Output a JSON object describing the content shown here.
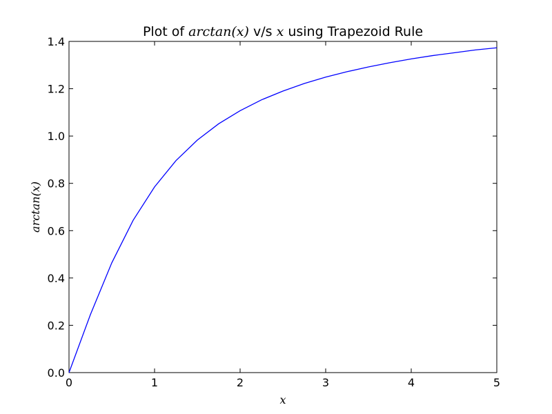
{
  "chart_data": {
    "type": "line",
    "title": {
      "prefix": "Plot of ",
      "math1": "arctan(x)",
      "middle": " v/s ",
      "math2": "x",
      "suffix": " using Trapezoid Rule"
    },
    "xlabel": "x",
    "ylabel": "arctan(x)",
    "xlim": [
      0,
      5
    ],
    "ylim": [
      0,
      1.4
    ],
    "xticks": [
      0,
      1,
      2,
      3,
      4,
      5
    ],
    "xtick_labels": [
      "0",
      "1",
      "2",
      "3",
      "4",
      "5"
    ],
    "yticks": [
      0,
      0.2,
      0.4,
      0.6,
      0.8,
      1.0,
      1.2,
      1.4
    ],
    "ytick_labels": [
      "0.0",
      "0.2",
      "0.4",
      "0.6",
      "0.8",
      "1.0",
      "1.2",
      "1.4"
    ],
    "grid": false,
    "series": [
      {
        "color": "#0000ff",
        "x": [
          0,
          0.25,
          0.5,
          0.75,
          1.0,
          1.25,
          1.5,
          1.75,
          2.0,
          2.25,
          2.5,
          2.75,
          3.0,
          3.25,
          3.5,
          3.75,
          4.0,
          4.25,
          4.5,
          4.75,
          5.0
        ],
        "y": [
          0.0,
          0.245,
          0.464,
          0.644,
          0.785,
          0.896,
          0.983,
          1.052,
          1.107,
          1.153,
          1.19,
          1.222,
          1.249,
          1.272,
          1.292,
          1.31,
          1.326,
          1.34,
          1.352,
          1.364,
          1.373
        ]
      }
    ]
  }
}
